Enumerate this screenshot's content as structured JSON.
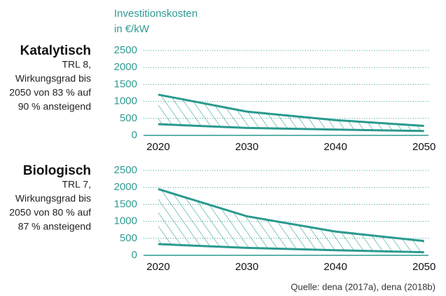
{
  "header": [
    "Investitionskosten",
    "in €/kW"
  ],
  "source": "Quelle: dena (2017a), dena (2018b)",
  "chart_data": [
    {
      "type": "area_range",
      "title": "Katalytisch",
      "description": [
        "TRL 8,",
        "Wirkungsgrad bis",
        "2050 von 83 % auf",
        "90 % ansteigend"
      ],
      "x": [
        2020,
        2030,
        2040,
        2050
      ],
      "xlim": [
        2018.5,
        2050.5
      ],
      "xticks": [
        2020,
        2030,
        2040,
        2050
      ],
      "ylim": [
        0,
        2500
      ],
      "yticks": [
        0,
        500,
        1000,
        1500,
        2000,
        2500
      ],
      "grid": true,
      "color": "#2a9a8f",
      "series": [
        {
          "values": [
            1200,
            700,
            450,
            280
          ]
        },
        {
          "values": [
            330,
            220,
            170,
            130
          ]
        }
      ]
    },
    {
      "type": "area_range",
      "title": "Biologisch",
      "description": [
        "TRL 7,",
        "Wirkungsgrad bis",
        "2050 von 80 % auf",
        "87 % ansteigend"
      ],
      "x": [
        2020,
        2030,
        2040,
        2050
      ],
      "xlim": [
        2018.5,
        2050.5
      ],
      "xticks": [
        2020,
        2030,
        2040,
        2050
      ],
      "ylim": [
        0,
        2500
      ],
      "yticks": [
        0,
        500,
        1000,
        1500,
        2000,
        2500
      ],
      "grid": true,
      "color": "#2a9a8f",
      "series": [
        {
          "values": [
            1950,
            1150,
            700,
            420
          ]
        },
        {
          "values": [
            330,
            220,
            150,
            90
          ]
        }
      ]
    }
  ]
}
